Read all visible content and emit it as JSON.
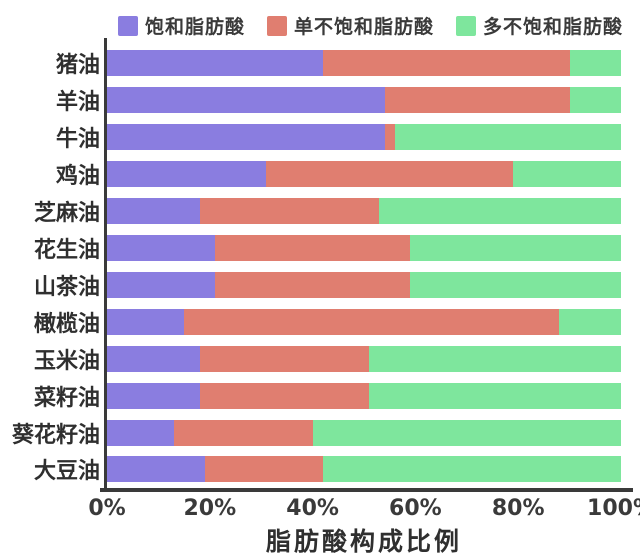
{
  "chart_data": {
    "type": "bar",
    "orientation": "horizontal-stacked",
    "title": "",
    "xlabel": "脂肪酸构成比例",
    "ylabel": "",
    "xlim": [
      0,
      100
    ],
    "grid": false,
    "legend_position": "top",
    "x_ticks": [
      "0%",
      "20%",
      "40%",
      "60%",
      "80%",
      "100%"
    ],
    "x_tick_values": [
      0,
      20,
      40,
      60,
      80,
      100
    ],
    "categories": [
      "猪油",
      "羊油",
      "牛油",
      "鸡油",
      "芝麻油",
      "花生油",
      "山茶油",
      "橄榄油",
      "玉米油",
      "菜籽油",
      "葵花籽油",
      "大豆油"
    ],
    "series": [
      {
        "name": "饱和脂肪酸",
        "color": "#8a7de0",
        "values": [
          42,
          54,
          54,
          31,
          18,
          21,
          21,
          15,
          18,
          18,
          13,
          19
        ]
      },
      {
        "name": "单不饱和脂肪酸",
        "color": "#e07e70",
        "values": [
          48,
          36,
          2,
          48,
          35,
          38,
          38,
          73,
          33,
          33,
          27,
          23
        ]
      },
      {
        "name": "多不饱和脂肪酸",
        "color": "#7ee69d",
        "values": [
          10,
          10,
          44,
          21,
          47,
          41,
          41,
          12,
          49,
          49,
          60,
          58
        ]
      }
    ],
    "colors": {
      "axis": "#3a3a3a",
      "text": "#2f2f2f",
      "background": "#ffffff"
    }
  }
}
